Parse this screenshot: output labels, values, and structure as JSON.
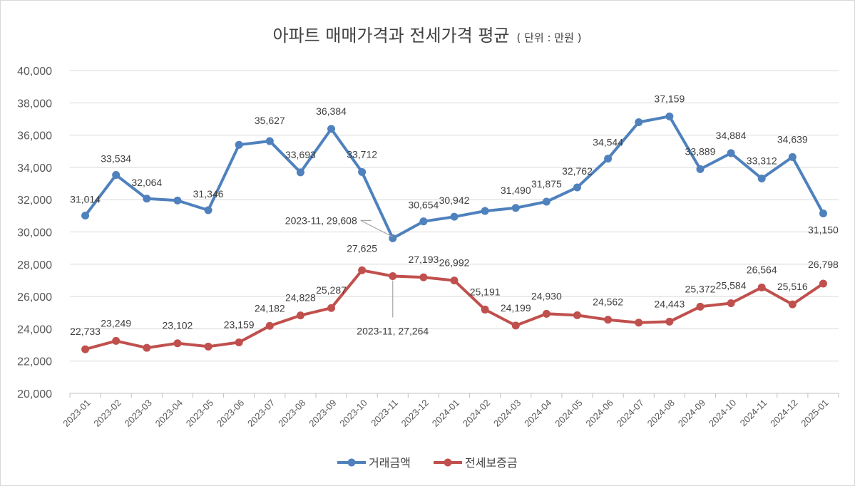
{
  "chart_data": {
    "type": "line",
    "title": "아파트 매매가격과 전세가격 평균",
    "subtitle": "( 단위 : 만원 )",
    "xlabel": "",
    "ylabel": "",
    "categories": [
      "2023-01",
      "2023-02",
      "2023-03",
      "2023-04",
      "2023-05",
      "2023-06",
      "2023-07",
      "2023-08",
      "2023-09",
      "2023-10",
      "2023-11",
      "2023-12",
      "2024-01",
      "2024-02",
      "2024-03",
      "2024-04",
      "2024-05",
      "2024-06",
      "2024-07",
      "2024-08",
      "2024-09",
      "2024-10",
      "2024-11",
      "2024-12",
      "2025-01"
    ],
    "ylim": [
      20000,
      40000
    ],
    "yticks": [
      20000,
      22000,
      24000,
      26000,
      28000,
      30000,
      32000,
      34000,
      36000,
      38000,
      40000
    ],
    "ytick_labels": [
      "20,000",
      "22,000",
      "24,000",
      "26,000",
      "28,000",
      "30,000",
      "32,000",
      "34,000",
      "36,000",
      "38,000",
      "40,000"
    ],
    "grid": true,
    "legend": "bottom",
    "series": [
      {
        "name": "거래금액",
        "color": "#4f81bd",
        "values": [
          31014,
          33534,
          32064,
          31950,
          31346,
          35400,
          35627,
          33693,
          36384,
          33712,
          29608,
          30654,
          30942,
          31300,
          31490,
          31875,
          32762,
          34544,
          36800,
          37159,
          33889,
          34884,
          33312,
          34639,
          31150
        ],
        "labels": [
          "31,014",
          "33,534",
          "32,064",
          "",
          "31,346",
          "",
          "35,627",
          "33,693",
          "36,384",
          "33,712",
          "2023-11, 29,608",
          "30,654",
          "30,942",
          "",
          "31,490",
          "31,875",
          "32,762",
          "34,544",
          "",
          "37,159",
          "33,889",
          "34,884",
          "33,312",
          "34,639",
          "31,150"
        ]
      },
      {
        "name": "전세보증금",
        "color": "#c0504d",
        "values": [
          22733,
          23249,
          22820,
          23102,
          22900,
          23159,
          24182,
          24828,
          25287,
          27625,
          27264,
          27193,
          26992,
          25191,
          24199,
          24930,
          24840,
          24562,
          24380,
          24443,
          25372,
          25584,
          26564,
          25516,
          26798
        ],
        "labels": [
          "22,733",
          "23,249",
          "",
          "23,102",
          "",
          "23,159",
          "24,182",
          "24,828",
          "25,287",
          "27,625",
          "2023-11, 27,264",
          "27,193",
          "26,992",
          "25,191",
          "24,199",
          "24,930",
          "",
          "24,562",
          "",
          "24,443",
          "25,372",
          "25,584",
          "26,564",
          "25,516",
          "26,798"
        ]
      }
    ]
  }
}
